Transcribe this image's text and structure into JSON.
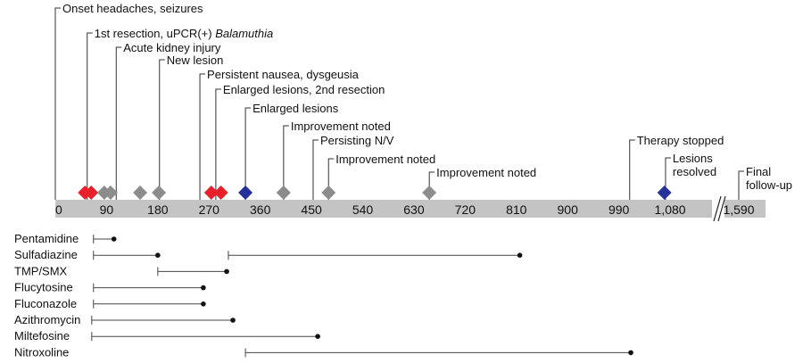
{
  "chart_data": {
    "type": "timeline",
    "events": [
      {
        "day": 0,
        "label": [
          "Onset headaches, seizures"
        ]
      },
      {
        "day": 56,
        "label": [
          "1st resection, uPCR(+) "
        ],
        "label_italic": "Balamuthia"
      },
      {
        "day": 107,
        "label": [
          "Acute kidney injury"
        ]
      },
      {
        "day": 183,
        "label": [
          "New lesion"
        ]
      },
      {
        "day": 254,
        "label": [
          "Persistent nausea, dysgeusia"
        ]
      },
      {
        "day": 282,
        "label": [
          "Enlarged lesions, 2nd resection"
        ]
      },
      {
        "day": 334,
        "label": [
          "Enlarged lesions"
        ]
      },
      {
        "day": 401,
        "label": [
          "Improvement noted"
        ]
      },
      {
        "day": 453,
        "label": [
          "Persisting N/V"
        ]
      },
      {
        "day": 480,
        "label": [
          "Improvement noted"
        ]
      },
      {
        "day": 657,
        "label": [
          "Improvement noted"
        ]
      },
      {
        "day": 1009,
        "label": [
          "Therapy stopped"
        ]
      },
      {
        "day": 1072,
        "label": [
          "Lesions",
          "resolved"
        ]
      },
      {
        "day": 1590,
        "label": [
          "Final",
          "follow-up"
        ]
      }
    ],
    "series": [
      {
        "color": "#e8202a",
        "values": [
          52,
          63,
          274,
          291
        ]
      },
      {
        "color": "#8c8c8c",
        "values": [
          86,
          97,
          149,
          182,
          401,
          480,
          657
        ]
      },
      {
        "color": "#24329a",
        "values": [
          334,
          1070
        ]
      }
    ],
    "xlim": [
      0,
      1590
    ],
    "axis_break": true,
    "xticks": [
      0,
      90,
      180,
      270,
      360,
      450,
      540,
      630,
      720,
      810,
      900,
      990,
      {
        "value": 1080,
        "label": "1,080"
      },
      {
        "value": 1590,
        "label": "1,590"
      }
    ],
    "drugs": [
      {
        "name": "Pentamidine",
        "periods": [
          [
            67,
            103
          ]
        ]
      },
      {
        "name": "Sulfadiazine",
        "periods": [
          [
            67,
            180
          ],
          [
            304,
            816
          ]
        ]
      },
      {
        "name": "TMP/SMX",
        "periods": [
          [
            180,
            301
          ]
        ]
      },
      {
        "name": "Flucytosine",
        "periods": [
          [
            67,
            260
          ]
        ]
      },
      {
        "name": "Fluconazole",
        "periods": [
          [
            67,
            260
          ]
        ]
      },
      {
        "name": "Azithromycin",
        "periods": [
          [
            64,
            312
          ]
        ]
      },
      {
        "name": "Miltefosine",
        "periods": [
          [
            64,
            461
          ]
        ]
      },
      {
        "name": "Nitroxoline",
        "periods": [
          [
            334,
            1011
          ]
        ]
      }
    ]
  }
}
